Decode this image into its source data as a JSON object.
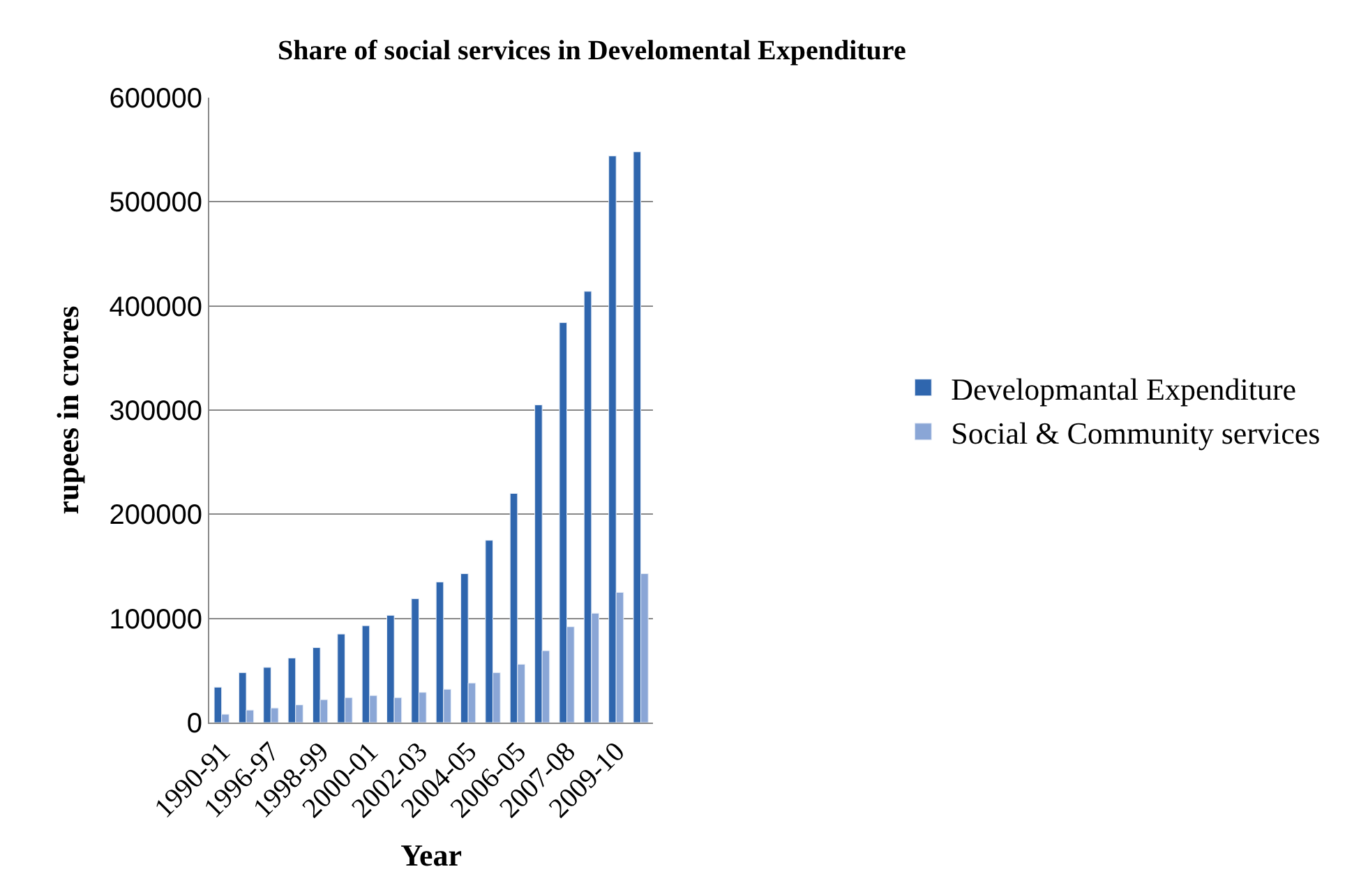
{
  "chart_data": {
    "type": "bar",
    "title": "Share of social services in Develomental Expenditure",
    "xlabel": "Year",
    "ylabel": "rupees in crores",
    "categories": [
      "1990-91",
      null,
      "1996-97",
      null,
      "1998-99",
      null,
      "2000-01",
      null,
      "2002-03",
      null,
      "2004-05",
      null,
      "2006-05",
      null,
      "2007-08",
      null,
      "2009-10",
      null
    ],
    "series": [
      {
        "name": "Developmantal Expenditure",
        "color": "#2f66ae",
        "values": [
          34000,
          48000,
          53000,
          62000,
          72000,
          85000,
          93000,
          103000,
          119000,
          135000,
          143000,
          175000,
          220000,
          305000,
          384000,
          414000,
          544000,
          548000
        ]
      },
      {
        "name": "Social & Community services",
        "color": "#8aa6d6",
        "values": [
          8000,
          12000,
          14000,
          17000,
          22000,
          24000,
          26000,
          24000,
          29000,
          32000,
          38000,
          48000,
          56000,
          69000,
          92000,
          105000,
          125000,
          143000
        ]
      }
    ],
    "ylim": [
      0,
      600000
    ],
    "yticks": [
      0,
      100000,
      200000,
      300000,
      400000,
      500000,
      600000
    ],
    "grid": "y",
    "legend": "right"
  }
}
